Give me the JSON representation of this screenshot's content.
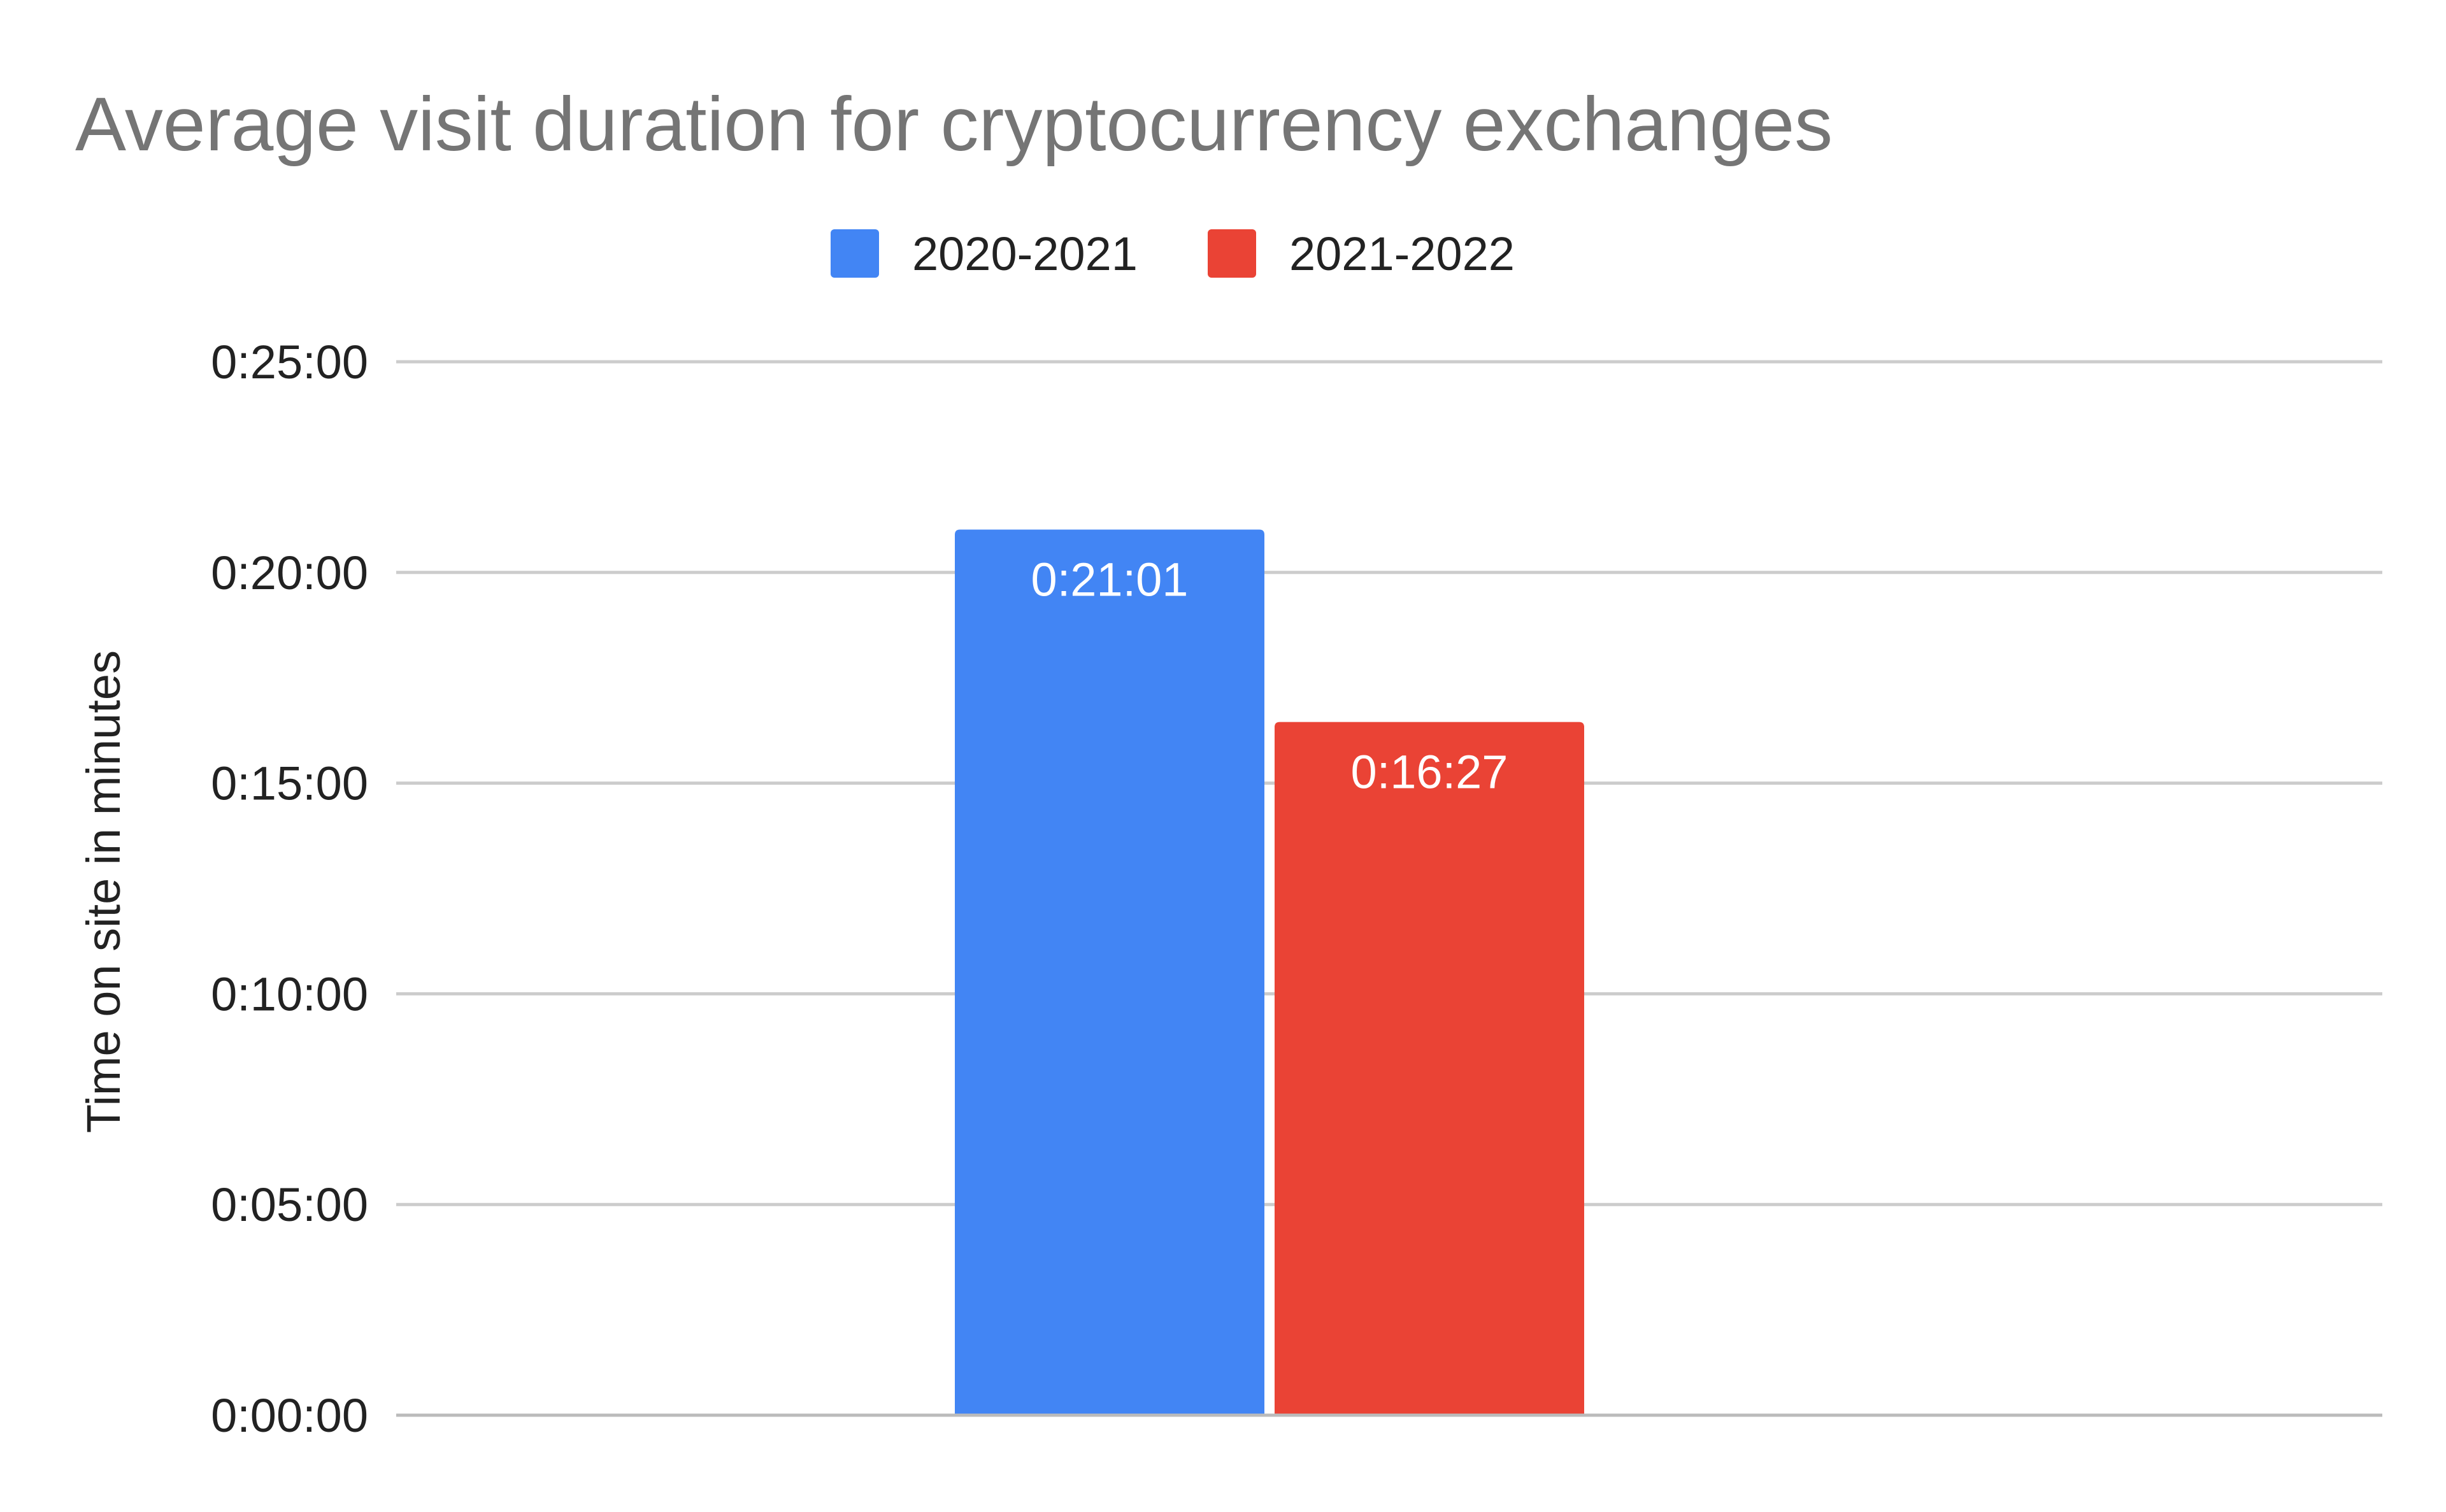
{
  "chart_data": {
    "type": "bar",
    "title": "Average visit duration for cryptocurrency exchanges",
    "xlabel": "",
    "ylabel": "Time on site in minutes",
    "categories": [
      ""
    ],
    "ylim": [
      0,
      1500
    ],
    "y_unit": "seconds",
    "y_ticks": [
      0,
      300,
      600,
      900,
      1200,
      1500
    ],
    "y_tick_labels": [
      "0:00:00",
      "0:05:00",
      "0:10:00",
      "0:15:00",
      "0:20:00",
      "0:25:00"
    ],
    "grid": true,
    "legend_position": "top",
    "series": [
      {
        "name": "2020-2021",
        "values": [
          1261
        ],
        "data_labels": [
          "0:21:01"
        ],
        "color": "#4285f4"
      },
      {
        "name": "2021-2022",
        "values": [
          987
        ],
        "data_labels": [
          "0:16:27"
        ],
        "color": "#ea4335"
      }
    ]
  }
}
